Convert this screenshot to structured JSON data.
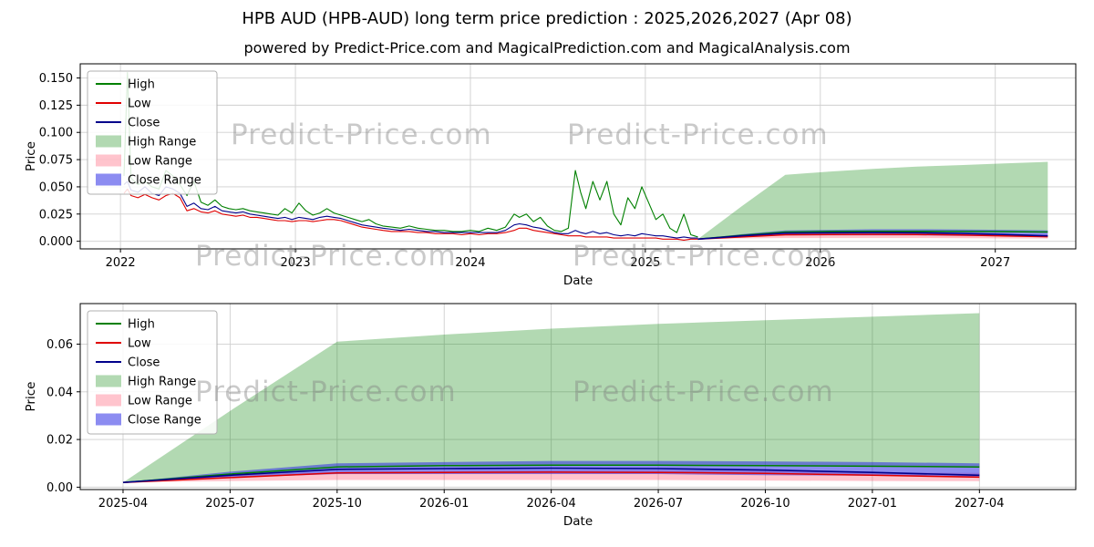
{
  "title": "HPB AUD (HPB-AUD) long term price prediction : 2025,2026,2027 (Apr 08)",
  "subtitle": "powered by Predict-Price.com and MagicalPrediction.com and MagicalAnalysis.com",
  "watermark": "Predict-Price.com",
  "colors": {
    "high": "#008000",
    "low": "#e00000",
    "close": "#00008b",
    "high_range": "rgba(0,128,0,0.30)",
    "low_range": "rgba(255,60,90,0.30)",
    "close_range": "rgba(45,45,230,0.55)"
  },
  "legend": [
    {
      "label": "High",
      "swatch": "line",
      "color": "high"
    },
    {
      "label": "Low",
      "swatch": "line",
      "color": "low"
    },
    {
      "label": "Close",
      "swatch": "line",
      "color": "close"
    },
    {
      "label": "High Range",
      "swatch": "patch",
      "color": "high_range"
    },
    {
      "label": "Low Range",
      "swatch": "patch",
      "color": "low_range"
    },
    {
      "label": "Close Range",
      "swatch": "patch",
      "color": "close_range"
    }
  ],
  "forecast": {
    "months": [
      0,
      3,
      6,
      9,
      12,
      15,
      18,
      21,
      24
    ],
    "high_top": [
      0.002,
      0.032,
      0.061,
      0.064,
      0.0665,
      0.0685,
      0.07,
      0.0715,
      0.073
    ],
    "high_line": [
      0.002,
      0.0055,
      0.0085,
      0.009,
      0.0092,
      0.0092,
      0.009,
      0.0088,
      0.0085
    ],
    "close_top": [
      0.002,
      0.0065,
      0.01,
      0.0105,
      0.011,
      0.011,
      0.0108,
      0.0105,
      0.01
    ],
    "close_bot": [
      0.002,
      0.004,
      0.0055,
      0.0055,
      0.0055,
      0.0055,
      0.005,
      0.0048,
      0.0045
    ],
    "close_line": [
      0.002,
      0.005,
      0.0075,
      0.0078,
      0.008,
      0.0078,
      0.0072,
      0.0062,
      0.005
    ],
    "low_top": [
      0.002,
      0.005,
      0.0065,
      0.0068,
      0.007,
      0.007,
      0.0068,
      0.0062,
      0.006
    ],
    "low_bot": [
      0.002,
      0.0026,
      0.003,
      0.003,
      0.003,
      0.003,
      0.0028,
      0.0026,
      0.0025
    ],
    "low_line": [
      0.002,
      0.004,
      0.006,
      0.0062,
      0.0063,
      0.0062,
      0.0058,
      0.005,
      0.0042
    ]
  },
  "chart_data": [
    {
      "type": "line",
      "title": "",
      "xlabel": "Date",
      "ylabel": "Price",
      "xlim": [
        2021.77,
        2027.46
      ],
      "ylim": [
        -0.007,
        0.163
      ],
      "grid": true,
      "legend_position": "upper left",
      "forecast_start_year": 2025.3,
      "xticks": [
        {
          "v": 2022,
          "label": "2022"
        },
        {
          "v": 2023,
          "label": "2023"
        },
        {
          "v": 2024,
          "label": "2024"
        },
        {
          "v": 2025,
          "label": "2025"
        },
        {
          "v": 2026,
          "label": "2026"
        },
        {
          "v": 2027,
          "label": "2027"
        }
      ],
      "yticks": [
        {
          "v": 0.0,
          "label": "0.000"
        },
        {
          "v": 0.025,
          "label": "0.025"
        },
        {
          "v": 0.05,
          "label": "0.050"
        },
        {
          "v": 0.075,
          "label": "0.075"
        },
        {
          "v": 0.1,
          "label": "0.100"
        },
        {
          "v": 0.125,
          "label": "0.125"
        },
        {
          "v": 0.15,
          "label": "0.150"
        }
      ],
      "historical": {
        "x": [
          2022.02,
          2022.04,
          2022.06,
          2022.1,
          2022.14,
          2022.18,
          2022.22,
          2022.26,
          2022.3,
          2022.34,
          2022.38,
          2022.42,
          2022.46,
          2022.5,
          2022.54,
          2022.58,
          2022.62,
          2022.66,
          2022.7,
          2022.74,
          2022.78,
          2022.82,
          2022.86,
          2022.9,
          2022.94,
          2022.98,
          2023.02,
          2023.06,
          2023.1,
          2023.14,
          2023.18,
          2023.22,
          2023.26,
          2023.3,
          2023.34,
          2023.38,
          2023.42,
          2023.46,
          2023.5,
          2023.55,
          2023.6,
          2023.65,
          2023.7,
          2023.75,
          2023.8,
          2023.85,
          2023.9,
          2023.95,
          2024.0,
          2024.05,
          2024.1,
          2024.15,
          2024.2,
          2024.25,
          2024.28,
          2024.32,
          2024.36,
          2024.4,
          2024.44,
          2024.48,
          2024.52,
          2024.56,
          2024.6,
          2024.63,
          2024.66,
          2024.7,
          2024.74,
          2024.78,
          2024.82,
          2024.86,
          2024.9,
          2024.94,
          2024.98,
          2025.02,
          2025.06,
          2025.1,
          2025.14,
          2025.18,
          2025.22,
          2025.26,
          2025.3
        ],
        "high": [
          0.06,
          0.155,
          0.058,
          0.052,
          0.055,
          0.05,
          0.048,
          0.065,
          0.06,
          0.052,
          0.042,
          0.055,
          0.036,
          0.033,
          0.038,
          0.032,
          0.03,
          0.029,
          0.03,
          0.028,
          0.027,
          0.026,
          0.025,
          0.024,
          0.03,
          0.026,
          0.035,
          0.028,
          0.024,
          0.026,
          0.03,
          0.026,
          0.024,
          0.022,
          0.02,
          0.018,
          0.02,
          0.016,
          0.014,
          0.013,
          0.012,
          0.014,
          0.012,
          0.011,
          0.01,
          0.01,
          0.009,
          0.009,
          0.01,
          0.009,
          0.012,
          0.01,
          0.013,
          0.025,
          0.022,
          0.025,
          0.018,
          0.022,
          0.014,
          0.01,
          0.009,
          0.012,
          0.065,
          0.045,
          0.03,
          0.055,
          0.038,
          0.055,
          0.025,
          0.015,
          0.04,
          0.03,
          0.05,
          0.035,
          0.02,
          0.025,
          0.012,
          0.008,
          0.025,
          0.006,
          0.004
        ],
        "low": [
          0.044,
          0.048,
          0.042,
          0.04,
          0.043,
          0.04,
          0.038,
          0.042,
          0.044,
          0.04,
          0.028,
          0.03,
          0.027,
          0.026,
          0.028,
          0.025,
          0.024,
          0.023,
          0.024,
          0.022,
          0.022,
          0.021,
          0.02,
          0.019,
          0.019,
          0.018,
          0.019,
          0.019,
          0.018,
          0.019,
          0.02,
          0.02,
          0.019,
          0.017,
          0.015,
          0.013,
          0.012,
          0.011,
          0.01,
          0.009,
          0.009,
          0.009,
          0.008,
          0.008,
          0.007,
          0.007,
          0.007,
          0.006,
          0.007,
          0.006,
          0.007,
          0.007,
          0.008,
          0.01,
          0.012,
          0.012,
          0.01,
          0.009,
          0.008,
          0.007,
          0.006,
          0.005,
          0.005,
          0.005,
          0.004,
          0.004,
          0.004,
          0.004,
          0.003,
          0.003,
          0.003,
          0.003,
          0.003,
          0.003,
          0.003,
          0.002,
          0.002,
          0.002,
          0.001,
          0.002,
          0.002
        ],
        "close": [
          0.052,
          0.055,
          0.047,
          0.045,
          0.05,
          0.044,
          0.042,
          0.05,
          0.048,
          0.044,
          0.032,
          0.035,
          0.03,
          0.029,
          0.032,
          0.028,
          0.027,
          0.026,
          0.027,
          0.025,
          0.024,
          0.023,
          0.022,
          0.021,
          0.022,
          0.02,
          0.022,
          0.021,
          0.02,
          0.022,
          0.023,
          0.022,
          0.021,
          0.019,
          0.017,
          0.015,
          0.014,
          0.013,
          0.012,
          0.011,
          0.01,
          0.011,
          0.01,
          0.009,
          0.009,
          0.008,
          0.008,
          0.008,
          0.008,
          0.008,
          0.008,
          0.008,
          0.01,
          0.015,
          0.016,
          0.015,
          0.013,
          0.012,
          0.01,
          0.008,
          0.007,
          0.007,
          0.01,
          0.008,
          0.007,
          0.009,
          0.007,
          0.008,
          0.006,
          0.005,
          0.006,
          0.005,
          0.007,
          0.006,
          0.005,
          0.005,
          0.004,
          0.003,
          0.004,
          0.003,
          0.003
        ]
      }
    },
    {
      "type": "line",
      "title": "",
      "xlabel": "Date",
      "ylabel": "Price",
      "xlim": [
        -1.2,
        26.7
      ],
      "ylim": [
        -0.001,
        0.077
      ],
      "grid": true,
      "legend_position": "upper left",
      "xticks": [
        {
          "v": 0,
          "label": "2025-04"
        },
        {
          "v": 3,
          "label": "2025-07"
        },
        {
          "v": 6,
          "label": "2025-10"
        },
        {
          "v": 9,
          "label": "2026-01"
        },
        {
          "v": 12,
          "label": "2026-04"
        },
        {
          "v": 15,
          "label": "2026-07"
        },
        {
          "v": 18,
          "label": "2026-10"
        },
        {
          "v": 21,
          "label": "2027-01"
        },
        {
          "v": 24,
          "label": "2027-04"
        }
      ],
      "yticks": [
        {
          "v": 0.0,
          "label": "0.00"
        },
        {
          "v": 0.02,
          "label": "0.02"
        },
        {
          "v": 0.04,
          "label": "0.04"
        },
        {
          "v": 0.06,
          "label": "0.06"
        }
      ]
    }
  ]
}
